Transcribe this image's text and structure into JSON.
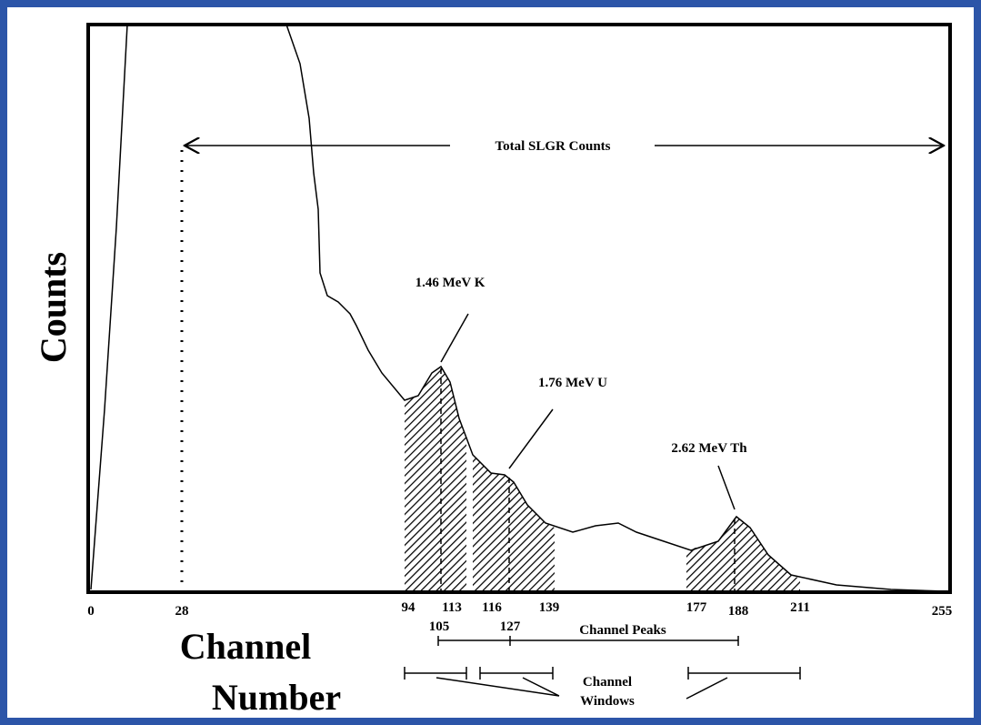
{
  "axis_labels": {
    "y": "Counts",
    "x": [
      "Channel",
      "Number"
    ]
  },
  "total_label": "Total SLGR Counts",
  "peaks": [
    "1.46 MeV K",
    "1.76 MeV U",
    "2.62 MeV Th"
  ],
  "channel_ticks": [
    0,
    28,
    94,
    113,
    116,
    139,
    177,
    188,
    211,
    255
  ],
  "peak_channels": [
    105,
    127
  ],
  "channel_peaks_label": "Channel Peaks",
  "channel_windows_label": [
    "Channel",
    "Windows"
  ]
}
